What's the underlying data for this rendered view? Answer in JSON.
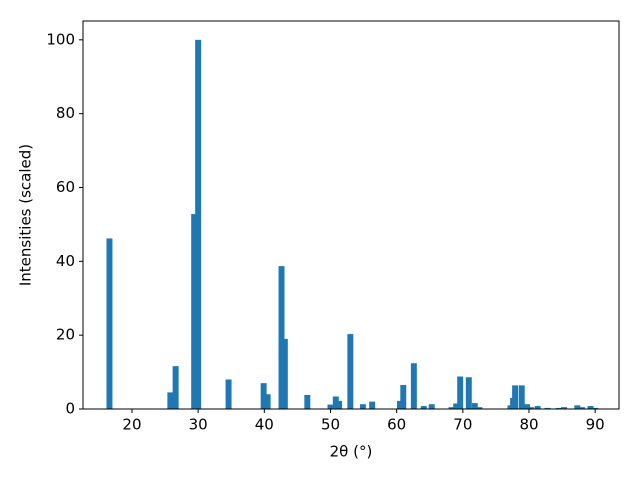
{
  "chart_data": {
    "type": "bar",
    "xlabel": "2θ (°)",
    "ylabel": "Intensities (scaled)",
    "color": "#1f77b4",
    "x": [
      16.6,
      25.8,
      26.6,
      29.4,
      30.0,
      34.6,
      39.9,
      40.5,
      42.6,
      43.1,
      46.5,
      50.0,
      50.8,
      51.3,
      53.0,
      54.9,
      56.3,
      60.5,
      61.0,
      62.6,
      64.1,
      65.3,
      68.3,
      69.0,
      69.6,
      70.9,
      71.8,
      72.5,
      77.2,
      77.6,
      77.9,
      78.9,
      79.7,
      80.3,
      81.3,
      82.8,
      84.5,
      85.3,
      87.3,
      88.0,
      89.3,
      90.0
    ],
    "values": [
      46.2,
      4.5,
      11.6,
      52.8,
      100,
      8.0,
      7.0,
      4.0,
      38.7,
      19.0,
      3.8,
      1.2,
      3.4,
      2.2,
      20.3,
      1.3,
      2.0,
      2.2,
      6.5,
      12.4,
      0.8,
      1.3,
      0.5,
      1.5,
      8.8,
      8.6,
      1.6,
      0.5,
      1.0,
      3.0,
      6.4,
      6.4,
      1.3,
      0.5,
      0.8,
      0.3,
      0.3,
      0.5,
      1.0,
      0.5,
      0.8,
      0.3
    ],
    "xlim": [
      12.6,
      93.6
    ],
    "xticks": [
      20,
      30,
      40,
      50,
      60,
      70,
      80,
      90
    ],
    "ylim": [
      0,
      105.1
    ],
    "yticks": [
      0,
      20,
      40,
      60,
      80,
      100
    ]
  }
}
